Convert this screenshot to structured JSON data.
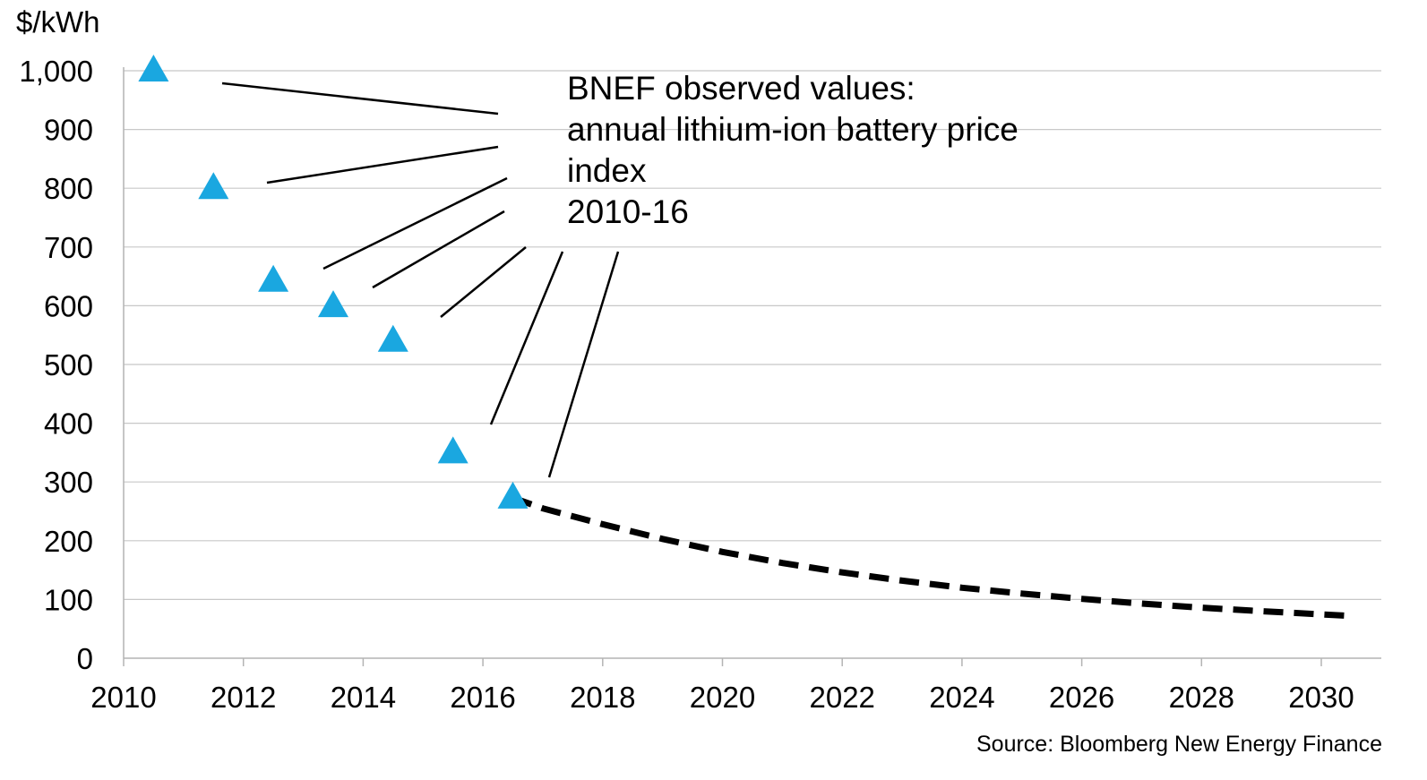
{
  "chart_data": {
    "type": "scatter",
    "ylabel": "$/kWh",
    "ylim": [
      0,
      1000
    ],
    "xlim": [
      2010,
      2030
    ],
    "y_ticks": [
      0,
      100,
      200,
      300,
      400,
      500,
      600,
      700,
      800,
      900,
      1000
    ],
    "y_tick_labels": [
      "0",
      "100",
      "200",
      "300",
      "400",
      "500",
      "600",
      "700",
      "800",
      "900",
      "1,000"
    ],
    "x_ticks": [
      2010,
      2012,
      2014,
      2016,
      2018,
      2020,
      2022,
      2024,
      2026,
      2028,
      2030
    ],
    "x_tick_labels": [
      "2010",
      "2012",
      "2014",
      "2016",
      "2018",
      "2020",
      "2022",
      "2024",
      "2026",
      "2028",
      "2030"
    ],
    "grid": "horizontal",
    "series": [
      {
        "name": "BNEF observed values: annual lithium-ion battery price index 2010-16",
        "marker": "triangle",
        "color": "#1aa7e0",
        "x": [
          2010.5,
          2011.5,
          2012.5,
          2013.5,
          2014.5,
          2015.5,
          2016.5
        ],
        "y": [
          1000,
          800,
          642,
          599,
          540,
          350,
          273
        ]
      },
      {
        "marker": "dashed-line",
        "color": "#000000",
        "x": [
          2016.5,
          2017,
          2018,
          2019,
          2020,
          2021,
          2022,
          2023,
          2024,
          2025,
          2026,
          2027,
          2028,
          2029,
          2030.5
        ],
        "y": [
          273,
          255,
          228,
          203,
          181,
          162,
          146,
          132,
          120,
          110,
          101,
          93,
          86,
          80,
          72
        ]
      }
    ],
    "annotation": {
      "lines": [
        "BNEF observed values:",
        "annual lithium-ion battery price",
        "index",
        "2010-16"
      ]
    },
    "source": "Source: Bloomberg New Energy Finance"
  }
}
